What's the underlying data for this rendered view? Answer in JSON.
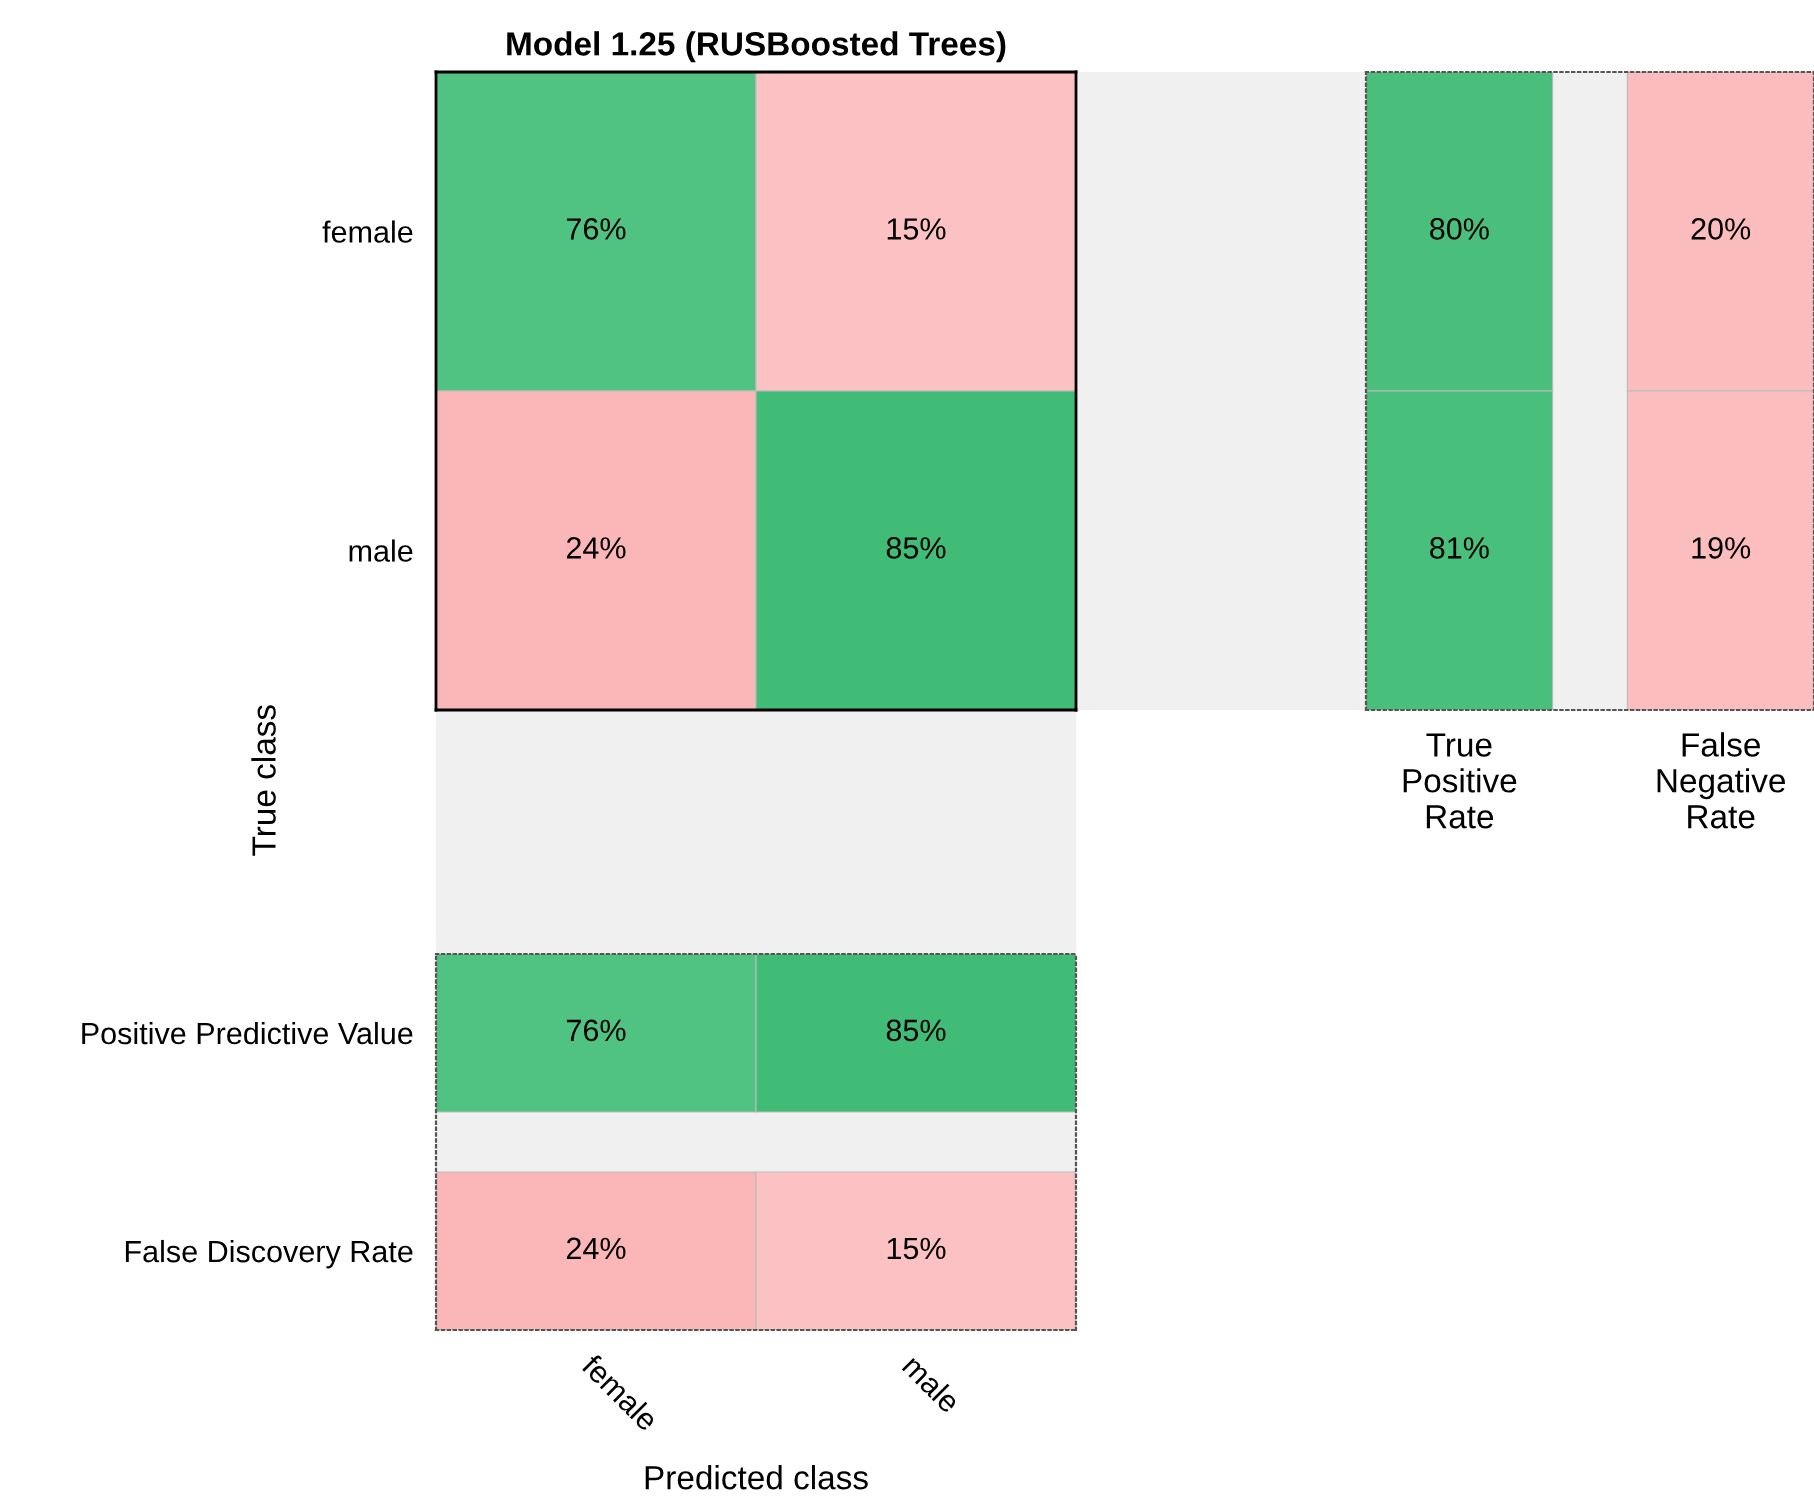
{
  "chart_data": [
    {
      "type": "heatmap",
      "title": "Model 1.25 (RUSBoosted Trees)",
      "ylabel": "True class",
      "categories": [
        null,
        null
      ],
      "y_categories": [
        "female",
        "male"
      ],
      "tick_labels": "y",
      "cells": [
        [
          76,
          15
        ],
        [
          24,
          85
        ]
      ],
      "cell_labels": [
        [
          "76%",
          "15%"
        ],
        [
          "24%",
          "85%"
        ]
      ]
    },
    {
      "type": "heatmap",
      "categories": [
        "True Positive Rate",
        "False Negative Rate"
      ],
      "y_categories": [
        null,
        null
      ],
      "tick_labels": "x",
      "cells": [
        [
          80,
          20
        ],
        [
          81,
          19
        ]
      ],
      "cell_labels": [
        [
          "80%",
          "20%"
        ],
        [
          "81%",
          "19%"
        ]
      ]
    },
    {
      "type": "heatmap",
      "xlabel": "Predicted class",
      "categories": [
        "female",
        "male"
      ],
      "y_categories": [
        "Positive Predictive Value",
        "False Discovery Rate"
      ],
      "cells": [
        [
          76,
          85
        ],
        [
          24,
          15
        ]
      ],
      "cell_labels": [
        [
          "76%",
          "85%"
        ],
        [
          "24%",
          "15%"
        ]
      ]
    }
  ]
}
